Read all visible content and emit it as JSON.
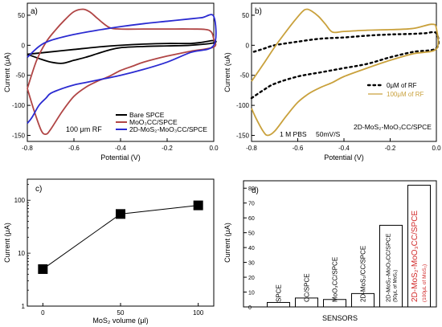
{
  "chart_data": [
    {
      "id": "a",
      "type": "line",
      "panel_label": "a)",
      "xlabel": "Potential (V)",
      "ylabel": "Current (μA)",
      "xlim": [
        -0.8,
        0.0
      ],
      "ylim": [
        -160,
        70
      ],
      "x_ticks": [
        -0.8,
        -0.6,
        -0.4,
        -0.2,
        0.0
      ],
      "x_tick_labels": [
        "-0.8",
        "-0.6",
        "-0.4",
        "-0.2",
        "0.0"
      ],
      "y_ticks": [
        -150,
        -100,
        -50,
        0,
        50
      ],
      "y_tick_labels": [
        "-150",
        "-100",
        "-50",
        "0",
        "50"
      ],
      "annotation": "100 μm RF",
      "legend_position": "bottom-right",
      "series": [
        {
          "name": "Bare SPCE",
          "color": "#000000",
          "points": [
            [
              -0.8,
              -15
            ],
            [
              -0.75,
              -22
            ],
            [
              -0.7,
              -28
            ],
            [
              -0.65,
              -30
            ],
            [
              -0.6,
              -25
            ],
            [
              -0.55,
              -20
            ],
            [
              -0.5,
              -14
            ],
            [
              -0.45,
              -8
            ],
            [
              -0.4,
              -4
            ],
            [
              -0.3,
              -2
            ],
            [
              -0.2,
              -1
            ],
            [
              -0.1,
              0
            ],
            [
              0.0,
              4
            ],
            [
              0.0,
              8
            ],
            [
              -0.05,
              5
            ],
            [
              -0.1,
              3
            ],
            [
              -0.2,
              3
            ],
            [
              -0.3,
              2
            ],
            [
              -0.4,
              0
            ],
            [
              -0.5,
              -3
            ],
            [
              -0.6,
              -7
            ],
            [
              -0.7,
              -11
            ],
            [
              -0.8,
              -15
            ]
          ]
        },
        {
          "name": "MoO₃CC/SPCE",
          "color": "#b04545",
          "points": [
            [
              -0.8,
              -72
            ],
            [
              -0.77,
              -110
            ],
            [
              -0.74,
              -142
            ],
            [
              -0.72,
              -148
            ],
            [
              -0.7,
              -140
            ],
            [
              -0.65,
              -110
            ],
            [
              -0.6,
              -85
            ],
            [
              -0.55,
              -70
            ],
            [
              -0.5,
              -60
            ],
            [
              -0.45,
              -52
            ],
            [
              -0.4,
              -42
            ],
            [
              -0.35,
              -35
            ],
            [
              -0.3,
              -28
            ],
            [
              -0.2,
              -18
            ],
            [
              -0.1,
              -10
            ],
            [
              0.0,
              -3
            ],
            [
              0.0,
              10
            ],
            [
              -0.02,
              25
            ],
            [
              -0.1,
              27
            ],
            [
              -0.2,
              27
            ],
            [
              -0.3,
              27
            ],
            [
              -0.4,
              27
            ],
            [
              -0.45,
              30
            ],
            [
              -0.5,
              45
            ],
            [
              -0.53,
              55
            ],
            [
              -0.56,
              60
            ],
            [
              -0.6,
              56
            ],
            [
              -0.64,
              42
            ],
            [
              -0.68,
              25
            ],
            [
              -0.72,
              5
            ],
            [
              -0.76,
              -25
            ],
            [
              -0.8,
              -72
            ]
          ]
        },
        {
          "name": "2D-MoS₂-MoO₃CC/SPCE",
          "color": "#2b2bd1",
          "points": [
            [
              -0.8,
              -130
            ],
            [
              -0.78,
              -120
            ],
            [
              -0.75,
              -100
            ],
            [
              -0.72,
              -88
            ],
            [
              -0.7,
              -80
            ],
            [
              -0.65,
              -72
            ],
            [
              -0.6,
              -66
            ],
            [
              -0.55,
              -62
            ],
            [
              -0.5,
              -58
            ],
            [
              -0.4,
              -50
            ],
            [
              -0.3,
              -40
            ],
            [
              -0.2,
              -28
            ],
            [
              -0.1,
              -12
            ],
            [
              0.0,
              0
            ],
            [
              0.0,
              48
            ],
            [
              -0.05,
              46
            ],
            [
              -0.1,
              44
            ],
            [
              -0.2,
              40
            ],
            [
              -0.3,
              36
            ],
            [
              -0.4,
              31
            ],
            [
              -0.5,
              25
            ],
            [
              -0.6,
              18
            ],
            [
              -0.7,
              8
            ],
            [
              -0.75,
              -2
            ],
            [
              -0.8,
              -20
            ]
          ]
        }
      ]
    },
    {
      "id": "b",
      "type": "line",
      "panel_label": "b)",
      "xlabel": "Potential (V)",
      "ylabel": "Current (uA)",
      "xlim": [
        -0.8,
        0.0
      ],
      "ylim": [
        -160,
        70
      ],
      "x_ticks": [
        -0.8,
        -0.6,
        -0.4,
        -0.2,
        0.0
      ],
      "x_tick_labels": [
        "-0.8",
        "-0.6",
        "-0.4",
        "-0.2",
        "0.0"
      ],
      "y_ticks": [
        -150,
        -100,
        -50,
        0,
        50
      ],
      "y_tick_labels": [
        "-150",
        "-100",
        "-50",
        "0",
        "50"
      ],
      "annotations": [
        "1 M PBS",
        "50mV/S",
        "2D-MoS₂-MoO₃CC/SPCE"
      ],
      "legend_position": "bottom-right",
      "series": [
        {
          "name": "0μM of RF",
          "color": "#000000",
          "style": "dotted",
          "points": [
            [
              -0.8,
              -88
            ],
            [
              -0.75,
              -75
            ],
            [
              -0.7,
              -64
            ],
            [
              -0.6,
              -52
            ],
            [
              -0.5,
              -45
            ],
            [
              -0.4,
              -38
            ],
            [
              -0.3,
              -31
            ],
            [
              -0.2,
              -20
            ],
            [
              -0.1,
              -11
            ],
            [
              0.0,
              -5
            ],
            [
              0.0,
              20
            ],
            [
              -0.05,
              20
            ],
            [
              -0.1,
              19
            ],
            [
              -0.2,
              18
            ],
            [
              -0.3,
              16
            ],
            [
              -0.4,
              13
            ],
            [
              -0.5,
              11
            ],
            [
              -0.6,
              6
            ],
            [
              -0.7,
              0
            ],
            [
              -0.75,
              -6
            ],
            [
              -0.8,
              -12
            ]
          ]
        },
        {
          "name": "100μM of RF",
          "color": "#c9a13c",
          "points": [
            [
              -0.8,
              -105
            ],
            [
              -0.78,
              -122
            ],
            [
              -0.75,
              -143
            ],
            [
              -0.73,
              -150
            ],
            [
              -0.7,
              -143
            ],
            [
              -0.65,
              -118
            ],
            [
              -0.6,
              -95
            ],
            [
              -0.55,
              -80
            ],
            [
              -0.5,
              -70
            ],
            [
              -0.45,
              -62
            ],
            [
              -0.4,
              -52
            ],
            [
              -0.3,
              -38
            ],
            [
              -0.2,
              -25
            ],
            [
              -0.1,
              -14
            ],
            [
              0.0,
              -6
            ],
            [
              0.0,
              28
            ],
            [
              -0.02,
              35
            ],
            [
              -0.1,
              28
            ],
            [
              -0.2,
              26
            ],
            [
              -0.3,
              25
            ],
            [
              -0.4,
              23
            ],
            [
              -0.45,
              22
            ],
            [
              -0.48,
              35
            ],
            [
              -0.51,
              48
            ],
            [
              -0.54,
              57
            ],
            [
              -0.56,
              60
            ],
            [
              -0.58,
              56
            ],
            [
              -0.62,
              38
            ],
            [
              -0.66,
              18
            ],
            [
              -0.7,
              -3
            ],
            [
              -0.75,
              -32
            ],
            [
              -0.8,
              -60
            ]
          ]
        }
      ]
    },
    {
      "id": "c",
      "type": "line",
      "panel_label": "c)",
      "xlabel": "MoS₂ volume (μl)",
      "ylabel": "Current (μA)",
      "y_scale": "log",
      "xlim": [
        -10,
        110
      ],
      "ylim": [
        1,
        250
      ],
      "x_ticks": [
        0,
        50,
        100
      ],
      "x_tick_labels": [
        "0",
        "50",
        "100"
      ],
      "y_ticks": [
        1,
        10,
        100
      ],
      "y_tick_labels": [
        "1",
        "10",
        "100"
      ],
      "series": [
        {
          "x": [
            0,
            50,
            100
          ],
          "values": [
            5,
            55,
            80
          ],
          "marker": "square",
          "color": "#000000"
        }
      ]
    },
    {
      "id": "d",
      "type": "bar",
      "panel_label": "d)",
      "xlabel": "SENSORS",
      "ylabel": "Current (μA)",
      "ylim": [
        0,
        85
      ],
      "y_ticks": [
        0,
        10,
        20,
        30,
        40,
        50,
        60,
        70,
        80
      ],
      "y_tick_labels": [
        "0",
        "10",
        "20",
        "30",
        "40",
        "50",
        "60",
        "70",
        "80"
      ],
      "categories": [
        [
          "SPCE"
        ],
        [
          "CC/SPCE"
        ],
        [
          "MoO₃CC/SPCE"
        ],
        [
          "2D-MoS₂/CC/SPCE"
        ],
        [
          "2D-MoS₂-MoO₃CC/SPCE",
          "(50μL of MoS₂)"
        ],
        [
          "2D-MoS₂-MoO₃CC/SPCE",
          "(100μL of MoS₂)"
        ]
      ],
      "values": [
        3,
        6,
        5,
        9,
        55,
        82
      ],
      "highlight_color": "#d12a2a",
      "highlight_index": 5
    }
  ]
}
